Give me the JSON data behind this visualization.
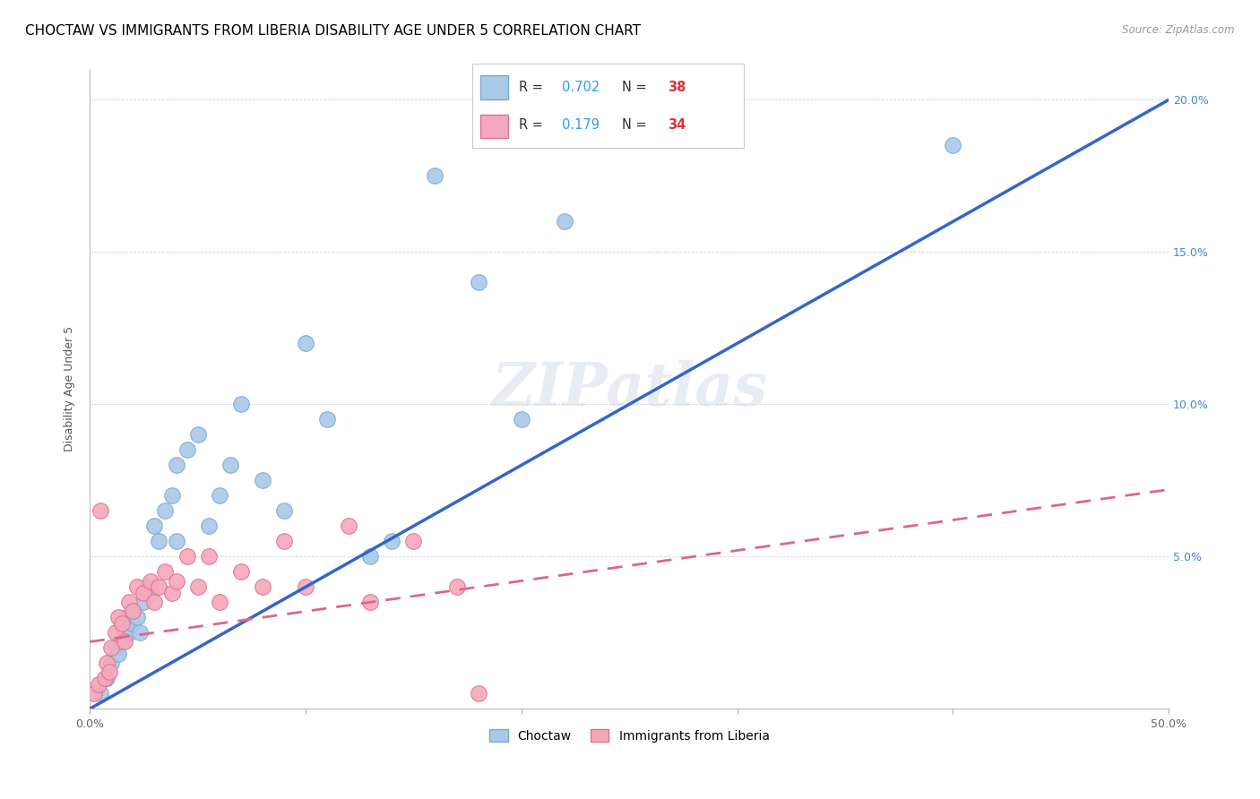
{
  "title": "CHOCTAW VS IMMIGRANTS FROM LIBERIA DISABILITY AGE UNDER 5 CORRELATION CHART",
  "source": "Source: ZipAtlas.com",
  "ylabel": "Disability Age Under 5",
  "xlim": [
    0.0,
    0.5
  ],
  "ylim": [
    0.0,
    0.21
  ],
  "xticks": [
    0.0,
    0.1,
    0.2,
    0.3,
    0.4,
    0.5
  ],
  "xticklabels": [
    "0.0%",
    "",
    "",
    "",
    "",
    "50.0%"
  ],
  "yticks": [
    0.0,
    0.05,
    0.1,
    0.15,
    0.2
  ],
  "yticklabels_left": [
    "",
    "",
    "",
    "",
    ""
  ],
  "yticklabels_right": [
    "",
    "5.0%",
    "10.0%",
    "15.0%",
    "20.0%"
  ],
  "choctaw_color": "#aac8e8",
  "choctaw_edge_color": "#7aaad0",
  "choctaw_line_color": "#3366cc",
  "liberia_color": "#f5a8bc",
  "liberia_edge_color": "#e07090",
  "liberia_line_color": "#dd6688",
  "watermark": "ZIPatlas",
  "blue_line_x0": 0.0,
  "blue_line_y0": 0.0,
  "blue_line_x1": 0.5,
  "blue_line_y1": 0.2,
  "pink_line_x0": 0.0,
  "pink_line_y0": 0.022,
  "pink_line_x1": 0.5,
  "pink_line_y1": 0.072,
  "choctaw_x": [
    0.005,
    0.008,
    0.01,
    0.012,
    0.013,
    0.015,
    0.016,
    0.017,
    0.018,
    0.02,
    0.022,
    0.023,
    0.025,
    0.027,
    0.028,
    0.03,
    0.032,
    0.035,
    0.038,
    0.04,
    0.04,
    0.045,
    0.05,
    0.055,
    0.06,
    0.065,
    0.07,
    0.08,
    0.09,
    0.1,
    0.11,
    0.13,
    0.14,
    0.16,
    0.18,
    0.2,
    0.22,
    0.4
  ],
  "choctaw_y": [
    0.005,
    0.01,
    0.015,
    0.02,
    0.018,
    0.022,
    0.025,
    0.03,
    0.025,
    0.028,
    0.03,
    0.025,
    0.035,
    0.04,
    0.038,
    0.06,
    0.055,
    0.065,
    0.07,
    0.08,
    0.055,
    0.085,
    0.09,
    0.06,
    0.07,
    0.08,
    0.1,
    0.075,
    0.065,
    0.12,
    0.095,
    0.05,
    0.055,
    0.175,
    0.14,
    0.095,
    0.16,
    0.185
  ],
  "liberia_x": [
    0.002,
    0.004,
    0.005,
    0.007,
    0.008,
    0.009,
    0.01,
    0.012,
    0.013,
    0.015,
    0.016,
    0.018,
    0.02,
    0.022,
    0.025,
    0.028,
    0.03,
    0.032,
    0.035,
    0.038,
    0.04,
    0.045,
    0.05,
    0.055,
    0.06,
    0.07,
    0.08,
    0.09,
    0.1,
    0.12,
    0.13,
    0.15,
    0.17,
    0.18
  ],
  "liberia_y": [
    0.005,
    0.008,
    0.065,
    0.01,
    0.015,
    0.012,
    0.02,
    0.025,
    0.03,
    0.028,
    0.022,
    0.035,
    0.032,
    0.04,
    0.038,
    0.042,
    0.035,
    0.04,
    0.045,
    0.038,
    0.042,
    0.05,
    0.04,
    0.05,
    0.035,
    0.045,
    0.04,
    0.055,
    0.04,
    0.06,
    0.035,
    0.055,
    0.04,
    0.005
  ],
  "title_fontsize": 11,
  "axis_fontsize": 9,
  "tick_fontsize": 9,
  "legend_r1": "0.702",
  "legend_n1": "38",
  "legend_r2": "0.179",
  "legend_n2": "34"
}
